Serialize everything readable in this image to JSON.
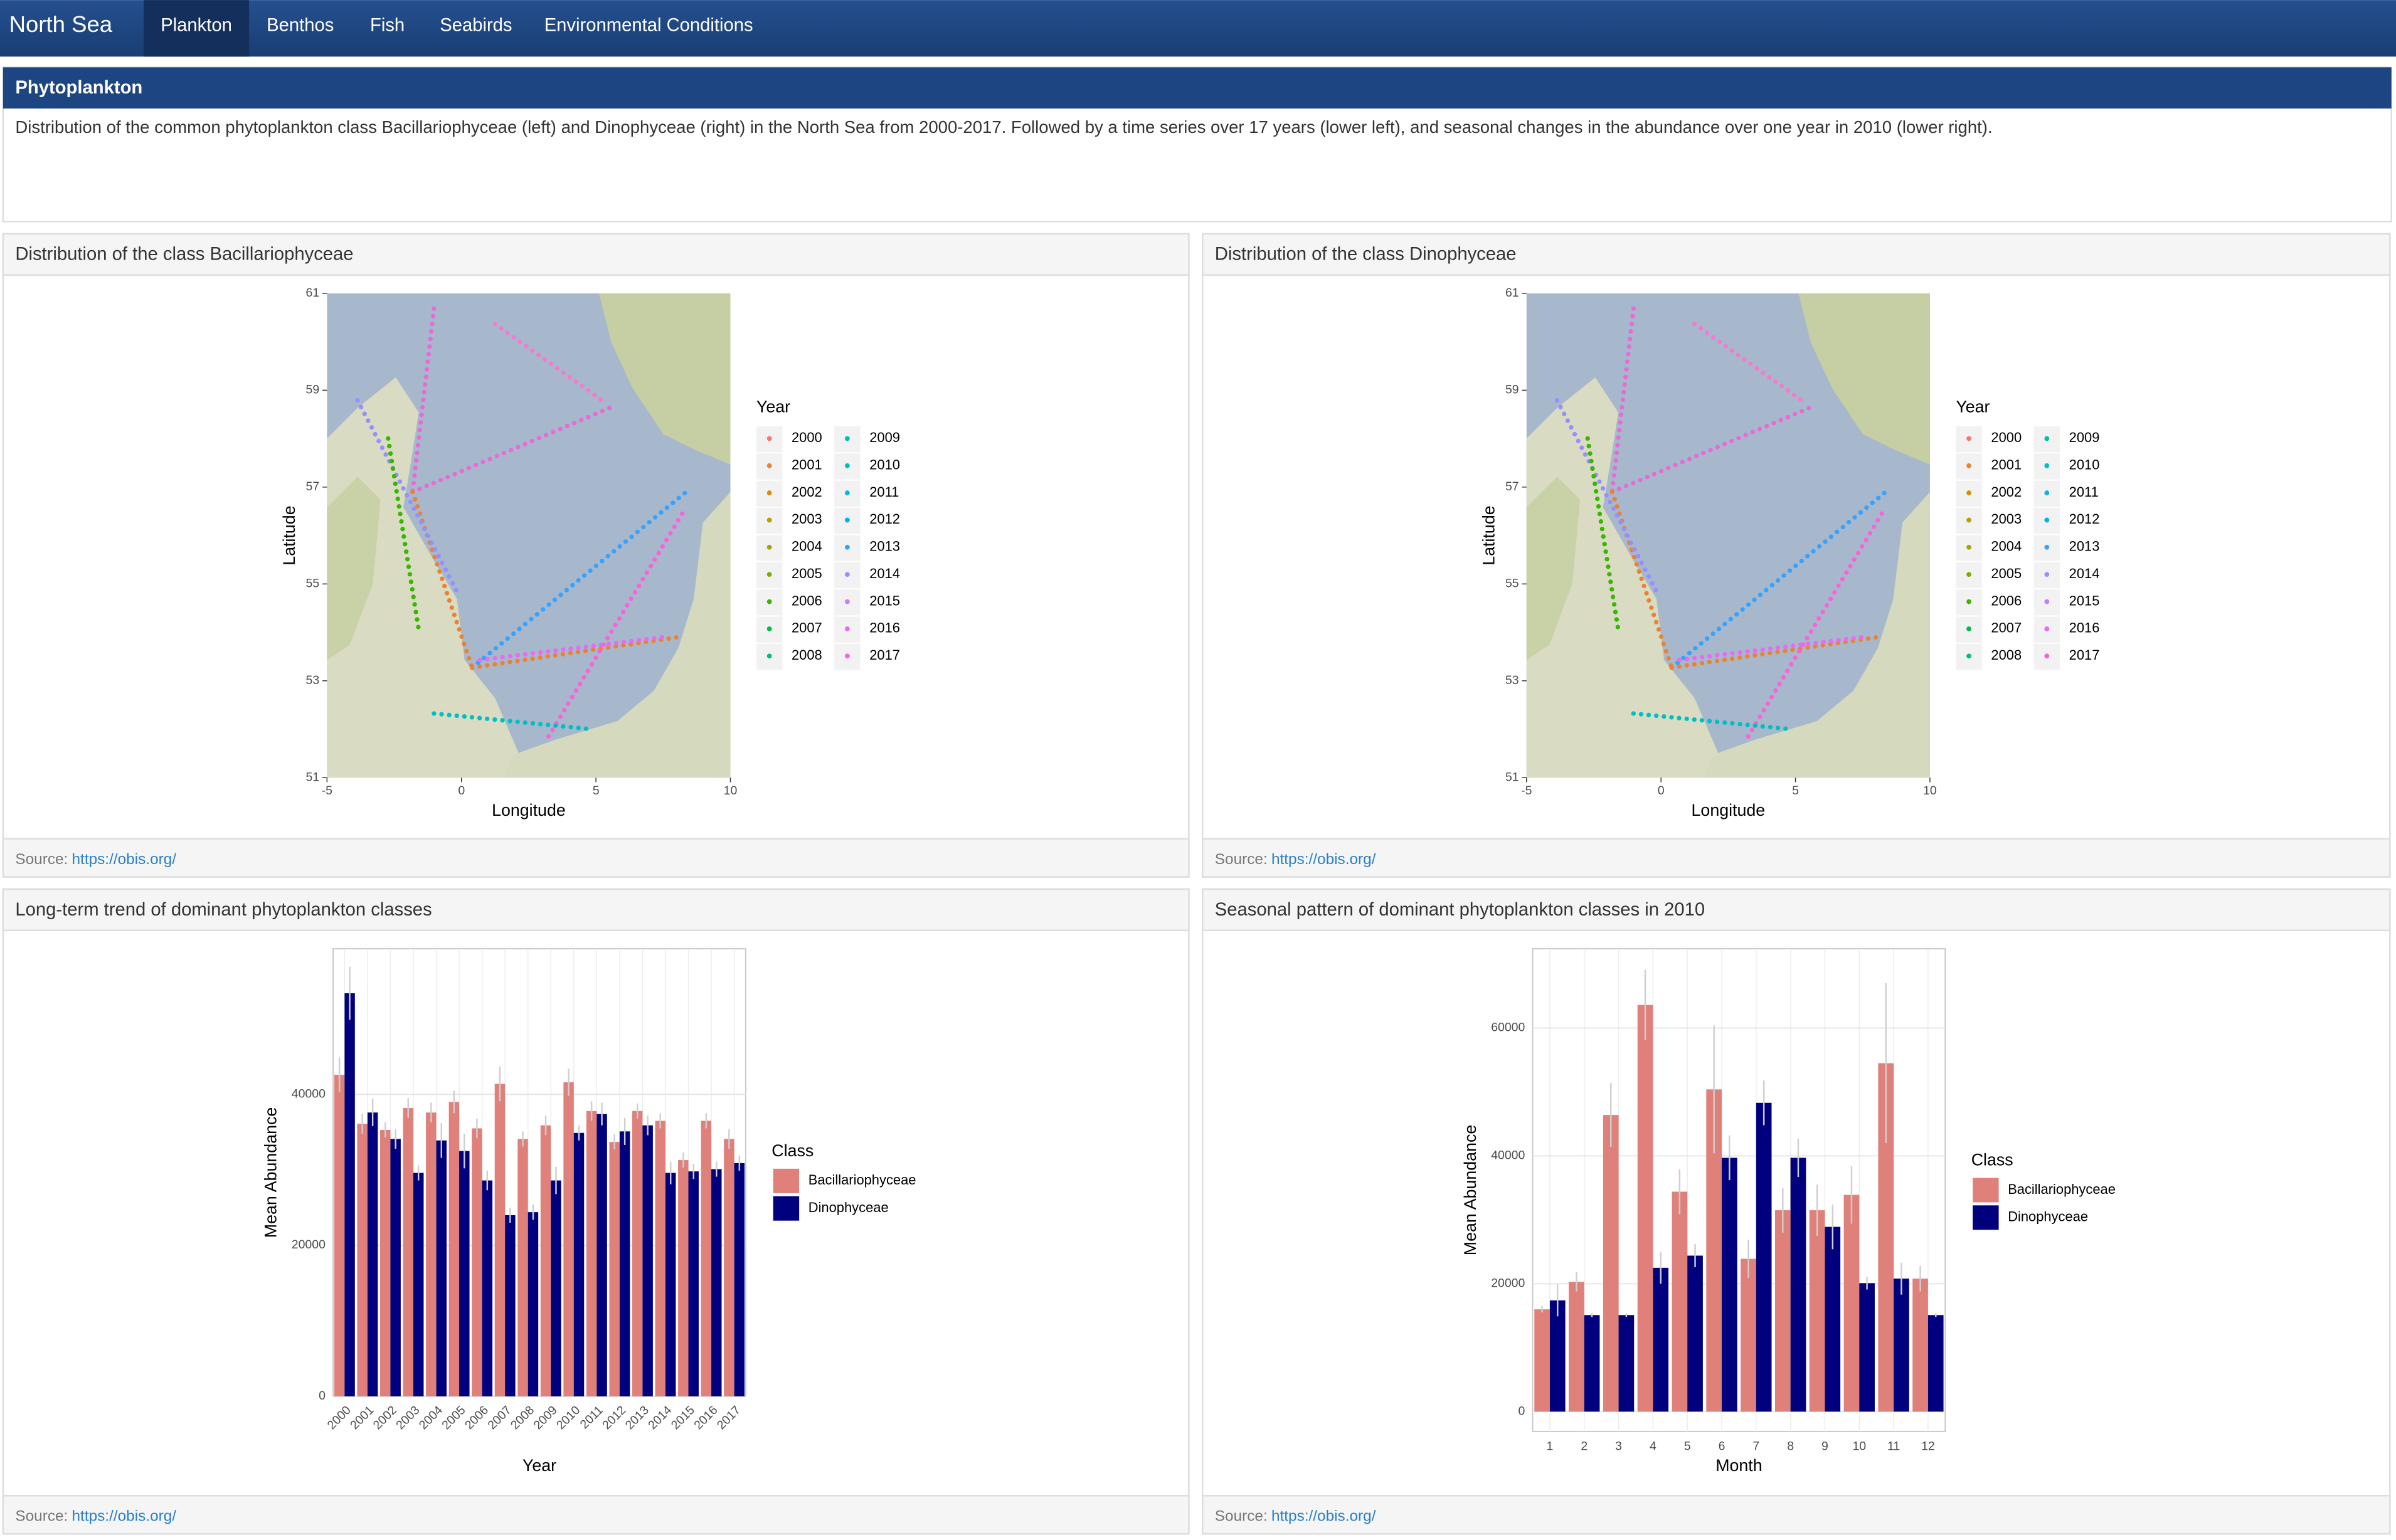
{
  "navbar": {
    "brand": "North Sea",
    "tabs": [
      "Plankton",
      "Benthos",
      "Fish",
      "Seabirds",
      "Environmental Conditions"
    ]
  },
  "intro": {
    "title": "Phytoplankton",
    "text": "Distribution of the common phytoplankton class Bacillariophyceae (left) and Dinophyceae (right) in the North Sea from 2000-2017. Followed by a time series over 17 years (lower left), and seasonal changes in the abundance over one year in 2010 (lower right)."
  },
  "panels": [
    {
      "title": "Distribution of the class Bacillariophyceae",
      "source_label": "Source:",
      "source_link": "https://obis.org/"
    },
    {
      "title": "Distribution of the class Dinophyceae",
      "source_label": "Source:",
      "source_link": "https://obis.org/"
    },
    {
      "title": "Long-term trend of dominant phytoplankton classes",
      "source_label": "Source:",
      "source_link": "https://obis.org/"
    },
    {
      "title": "Seasonal pattern of dominant phytoplankton classes in 2010",
      "source_label": "Source:",
      "source_link": "https://obis.org/"
    }
  ],
  "chart_data": [
    {
      "type": "map",
      "xlabel": "Longitude",
      "ylabel": "Latitude",
      "xlim": [
        -5,
        10
      ],
      "ylim": [
        51,
        61
      ],
      "xticks": [
        -5,
        0,
        5,
        10
      ],
      "yticks": [
        51,
        53,
        55,
        57,
        59,
        61
      ],
      "legend_title": "Year",
      "legend_items": [
        {
          "name": "2000",
          "color": "#F8766D"
        },
        {
          "name": "2001",
          "color": "#EA8331"
        },
        {
          "name": "2002",
          "color": "#D89000"
        },
        {
          "name": "2003",
          "color": "#C09B00"
        },
        {
          "name": "2004",
          "color": "#A3A500"
        },
        {
          "name": "2005",
          "color": "#7CAE00"
        },
        {
          "name": "2006",
          "color": "#39B600"
        },
        {
          "name": "2007",
          "color": "#00BB4E"
        },
        {
          "name": "2008",
          "color": "#00BF7D"
        },
        {
          "name": "2009",
          "color": "#00C1A3"
        },
        {
          "name": "2010",
          "color": "#00BFC4"
        },
        {
          "name": "2011",
          "color": "#00BAE0"
        },
        {
          "name": "2012",
          "color": "#00B0F6"
        },
        {
          "name": "2013",
          "color": "#35A2FF"
        },
        {
          "name": "2014",
          "color": "#9590FF"
        },
        {
          "name": "2015",
          "color": "#C77CFF"
        },
        {
          "name": "2016",
          "color": "#E76BF3"
        },
        {
          "name": "2017",
          "color": "#FA62DB"
        }
      ]
    },
    {
      "type": "map",
      "xlabel": "Longitude",
      "ylabel": "Latitude",
      "xlim": [
        -5,
        10
      ],
      "ylim": [
        51,
        61
      ],
      "xticks": [
        -5,
        0,
        5,
        10
      ],
      "yticks": [
        51,
        53,
        55,
        57,
        59,
        61
      ],
      "legend_title": "Year",
      "legend_items": [
        {
          "name": "2000",
          "color": "#F8766D"
        },
        {
          "name": "2001",
          "color": "#EA8331"
        },
        {
          "name": "2002",
          "color": "#D89000"
        },
        {
          "name": "2003",
          "color": "#C09B00"
        },
        {
          "name": "2004",
          "color": "#A3A500"
        },
        {
          "name": "2005",
          "color": "#7CAE00"
        },
        {
          "name": "2006",
          "color": "#39B600"
        },
        {
          "name": "2007",
          "color": "#00BB4E"
        },
        {
          "name": "2008",
          "color": "#00BF7D"
        },
        {
          "name": "2009",
          "color": "#00C1A3"
        },
        {
          "name": "2010",
          "color": "#00BFC4"
        },
        {
          "name": "2011",
          "color": "#00BAE0"
        },
        {
          "name": "2012",
          "color": "#00B0F6"
        },
        {
          "name": "2013",
          "color": "#35A2FF"
        },
        {
          "name": "2014",
          "color": "#9590FF"
        },
        {
          "name": "2015",
          "color": "#C77CFF"
        },
        {
          "name": "2016",
          "color": "#E76BF3"
        },
        {
          "name": "2017",
          "color": "#FA62DB"
        }
      ]
    },
    {
      "type": "bar",
      "xlabel": "Year",
      "ylabel": "Mean Abundance",
      "legend_title": "Class",
      "categories": [
        "2000",
        "2001",
        "2002",
        "2003",
        "2004",
        "2005",
        "2006",
        "2007",
        "2008",
        "2009",
        "2010",
        "2011",
        "2012",
        "2013",
        "2014",
        "2015",
        "2016",
        "2017"
      ],
      "ylim": [
        0,
        59300
      ],
      "yticks": [
        0,
        20000,
        40000
      ],
      "grid": true,
      "series": [
        {
          "name": "Bacillariophyceae",
          "color": "#E0807A",
          "values": [
            42600,
            36100,
            35300,
            38200,
            37600,
            39000,
            35500,
            41400,
            34100,
            35900,
            41600,
            37800,
            33700,
            37800,
            36500,
            31300,
            36500,
            34100
          ],
          "errors": [
            2300,
            1300,
            1000,
            1300,
            1300,
            1500,
            1300,
            2300,
            1000,
            1300,
            1800,
            1300,
            1000,
            1000,
            1000,
            1000,
            1000,
            1300
          ]
        },
        {
          "name": "Dinophyceae",
          "color": "#00007F",
          "values": [
            53400,
            37600,
            34100,
            29600,
            33900,
            32500,
            28600,
            24000,
            24400,
            28600,
            34900,
            37400,
            35100,
            35900,
            29600,
            29800,
            30100,
            30900
          ],
          "errors": [
            3500,
            1800,
            1300,
            1000,
            2300,
            2300,
            1300,
            1000,
            1000,
            1800,
            1000,
            1500,
            1800,
            1300,
            1500,
            1000,
            1000,
            1000
          ]
        }
      ]
    },
    {
      "type": "bar",
      "xlabel": "Month",
      "ylabel": "Mean Abundance",
      "legend_title": "Class",
      "categories": [
        "1",
        "2",
        "3",
        "4",
        "5",
        "6",
        "7",
        "8",
        "9",
        "10",
        "11",
        "12"
      ],
      "ylim": [
        -3100,
        72400
      ],
      "yticks": [
        0,
        20000,
        40000,
        60000
      ],
      "grid": true,
      "series": [
        {
          "name": "Bacillariophyceae",
          "color": "#E0807A",
          "values": [
            16000,
            20300,
            46400,
            63600,
            34400,
            50400,
            23900,
            31500,
            31500,
            33900,
            54500,
            20800
          ],
          "errors": [
            500,
            1500,
            5000,
            5500,
            3500,
            10000,
            3000,
            3500,
            4000,
            4500,
            12500,
            2000
          ]
        },
        {
          "name": "Dinophyceae",
          "color": "#00007F",
          "values": [
            17400,
            15100,
            15100,
            22500,
            24400,
            39700,
            48300,
            39700,
            28900,
            20100,
            20800,
            15100
          ],
          "errors": [
            2500,
            300,
            300,
            2500,
            1800,
            3500,
            3500,
            3000,
            3500,
            1000,
            2500,
            300
          ]
        }
      ]
    }
  ]
}
